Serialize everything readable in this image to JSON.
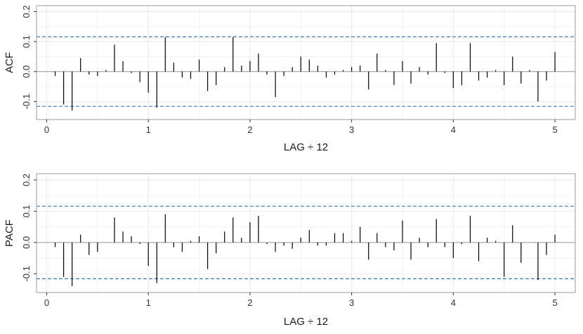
{
  "colors": {
    "bar": "#000000",
    "ci_line": "#1f6eb4",
    "zero_line": "#999999",
    "grid": "#e8e8e8",
    "frame": "#999999",
    "text": "#1a1a1a",
    "tick_text": "#333333"
  },
  "chart_data": [
    {
      "type": "bar",
      "title": "",
      "xlabel": "LAG ÷ 12",
      "ylabel": "ACF",
      "xlim": [
        -0.1,
        5.2
      ],
      "ylim": [
        -0.16,
        0.22
      ],
      "xticks": [
        "0",
        "1",
        "2",
        "3",
        "4",
        "5"
      ],
      "yticks": [
        "-0.1",
        "0.0",
        "0.1",
        "0.2"
      ],
      "grid": true,
      "confidence_band": [
        0.116,
        -0.116
      ],
      "x": [
        0.0833,
        0.1667,
        0.25,
        0.3333,
        0.4167,
        0.5,
        0.5833,
        0.6667,
        0.75,
        0.8333,
        0.9167,
        1.0,
        1.0833,
        1.1667,
        1.25,
        1.3333,
        1.4167,
        1.5,
        1.5833,
        1.6667,
        1.75,
        1.8333,
        1.9167,
        2.0,
        2.0833,
        2.1667,
        2.25,
        2.3333,
        2.4167,
        2.5,
        2.5833,
        2.6667,
        2.75,
        2.8333,
        2.9167,
        3.0,
        3.0833,
        3.1667,
        3.25,
        3.3333,
        3.4167,
        3.5,
        3.5833,
        3.6667,
        3.75,
        3.8333,
        3.9167,
        4.0,
        4.0833,
        4.1667,
        4.25,
        4.3333,
        4.4167,
        4.5,
        4.5833,
        4.6667,
        4.75,
        4.8333,
        4.9167,
        5.0
      ],
      "values": [
        -0.015,
        -0.11,
        -0.13,
        0.045,
        -0.01,
        -0.015,
        0.005,
        0.09,
        0.035,
        -0.005,
        -0.035,
        -0.07,
        -0.12,
        0.115,
        0.03,
        -0.02,
        -0.025,
        0.04,
        -0.065,
        -0.045,
        0.015,
        0.115,
        0.02,
        0.035,
        0.06,
        -0.01,
        -0.085,
        -0.015,
        0.015,
        0.05,
        0.04,
        0.02,
        -0.02,
        -0.01,
        0.005,
        0.015,
        0.02,
        -0.06,
        0.06,
        0.005,
        -0.045,
        0.035,
        -0.04,
        0.015,
        -0.01,
        0.095,
        -0.005,
        -0.055,
        -0.045,
        0.095,
        -0.03,
        -0.02,
        0.005,
        -0.045,
        0.05,
        -0.04,
        0.005,
        -0.1,
        -0.03,
        0.065
      ]
    },
    {
      "type": "bar",
      "title": "",
      "xlabel": "LAG ÷ 12",
      "ylabel": "PACF",
      "xlim": [
        -0.1,
        5.2
      ],
      "ylim": [
        -0.16,
        0.22
      ],
      "xticks": [
        "0",
        "1",
        "2",
        "3",
        "4",
        "5"
      ],
      "yticks": [
        "-0.1",
        "0.0",
        "0.1",
        "0.2"
      ],
      "grid": true,
      "confidence_band": [
        0.116,
        -0.116
      ],
      "x": [
        0.0833,
        0.1667,
        0.25,
        0.3333,
        0.4167,
        0.5,
        0.5833,
        0.6667,
        0.75,
        0.8333,
        0.9167,
        1.0,
        1.0833,
        1.1667,
        1.25,
        1.3333,
        1.4167,
        1.5,
        1.5833,
        1.6667,
        1.75,
        1.8333,
        1.9167,
        2.0,
        2.0833,
        2.1667,
        2.25,
        2.3333,
        2.4167,
        2.5,
        2.5833,
        2.6667,
        2.75,
        2.8333,
        2.9167,
        3.0,
        3.0833,
        3.1667,
        3.25,
        3.3333,
        3.4167,
        3.5,
        3.5833,
        3.6667,
        3.75,
        3.8333,
        3.9167,
        4.0,
        4.0833,
        4.1667,
        4.25,
        4.3333,
        4.4167,
        4.5,
        4.5833,
        4.6667,
        4.75,
        4.8333,
        4.9167,
        5.0
      ],
      "values": [
        -0.015,
        -0.11,
        -0.14,
        0.025,
        -0.04,
        -0.03,
        0.0,
        0.08,
        0.035,
        0.02,
        -0.005,
        -0.075,
        -0.13,
        0.09,
        -0.015,
        -0.03,
        0.005,
        0.02,
        -0.085,
        -0.035,
        0.035,
        0.08,
        0.015,
        0.065,
        0.085,
        -0.005,
        -0.03,
        -0.01,
        -0.02,
        0.015,
        0.04,
        -0.01,
        -0.01,
        0.03,
        0.03,
        0.005,
        0.05,
        -0.055,
        0.03,
        -0.015,
        -0.025,
        0.07,
        -0.055,
        0.015,
        -0.015,
        0.075,
        -0.015,
        -0.05,
        -0.005,
        0.085,
        -0.06,
        0.015,
        0.005,
        -0.11,
        0.055,
        -0.065,
        0.0,
        -0.12,
        -0.04,
        0.025
      ]
    }
  ]
}
